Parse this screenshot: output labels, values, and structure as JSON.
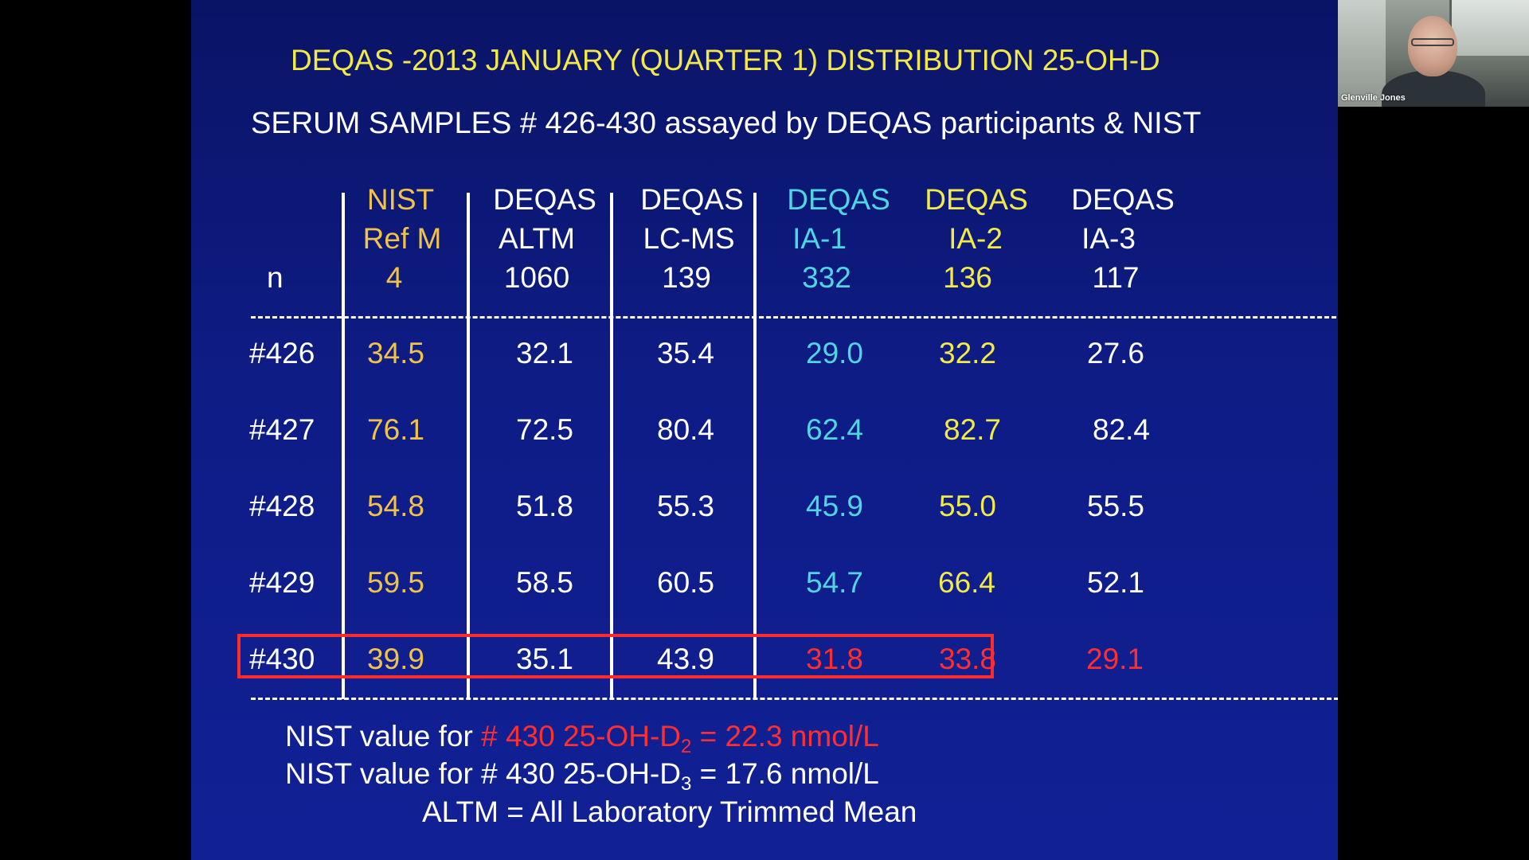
{
  "slide": {
    "title": "DEQAS -2013 JANUARY (QUARTER 1) DISTRIBUTION   25-OH-D",
    "subtitle": "SERUM SAMPLES # 426-430 assayed by DEQAS participants & NIST",
    "columns": [
      {
        "line1": "NIST",
        "line2": "Ref M",
        "n": "4",
        "color": "#f0c24a"
      },
      {
        "line1": "DEQAS",
        "line2": "ALTM",
        "n": "1060",
        "color": "#ffffff"
      },
      {
        "line1": "DEQAS",
        "line2": "LC-MS",
        "n": "139",
        "color": "#ffffff"
      },
      {
        "line1": "DEQAS",
        "line2": "IA-1",
        "n": "332",
        "color": "#4fd6e2"
      },
      {
        "line1": "DEQAS",
        "line2": "IA-2",
        "n": "136",
        "color": "#f1ea48"
      },
      {
        "line1": "DEQAS",
        "line2": "IA-3",
        "n": "117",
        "color": "#ffffff"
      }
    ],
    "n_label": "n",
    "rows": [
      {
        "label": "#426",
        "values": [
          "34.5",
          "32.1",
          "35.4",
          "29.0",
          "32.2",
          "27.6"
        ]
      },
      {
        "label": "#427",
        "values": [
          "76.1",
          "72.5",
          "80.4",
          "62.4",
          "82.7",
          "82.4"
        ]
      },
      {
        "label": "#428",
        "values": [
          "54.8",
          "51.8",
          "55.3",
          "45.9",
          "55.0",
          "55.5"
        ]
      },
      {
        "label": "#429",
        "values": [
          "59.5",
          "58.5",
          "60.5",
          "54.7",
          "66.4",
          "52.1"
        ]
      },
      {
        "label": "#430",
        "values": [
          "39.9",
          "35.1",
          "43.9",
          "31.8",
          "33.8",
          "29.1"
        ]
      }
    ],
    "notes": {
      "d2_prefix": "NIST value for ",
      "d2_red_main": "# 430 25-OH-D",
      "d2_sub": "2",
      "d2_red_tail": " = 22.3 nmol/L",
      "d3_prefix": "NIST value for # 430 25-OH-D",
      "d3_sub": "3",
      "d3_tail": " = 17.6 nmol/L",
      "altm": "ALTM = All Laboratory Trimmed Mean"
    },
    "colors": {
      "background": "#0e1c86",
      "title": "#f2e84a",
      "highlight": "#ff2a2a"
    }
  },
  "webcam": {
    "participant_name": "Glenville Jones"
  }
}
